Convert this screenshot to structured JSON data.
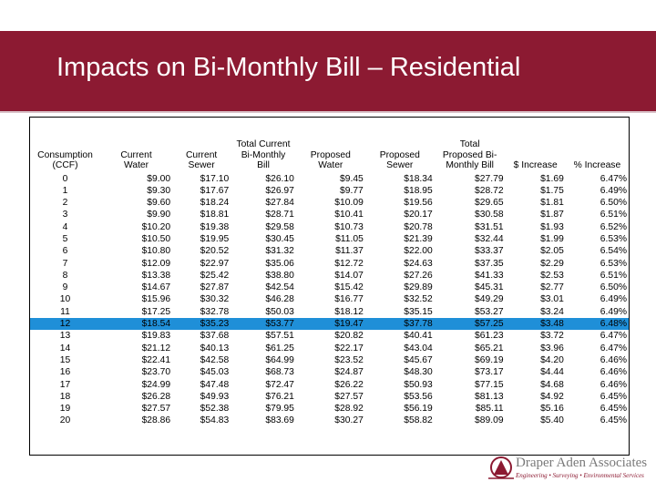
{
  "slide": {
    "title": "Impacts on Bi-Monthly Bill – Residential"
  },
  "table": {
    "headers": [
      [
        "Consumption",
        "(CCF)"
      ],
      [
        "Current",
        "Water"
      ],
      [
        "Current",
        "Sewer"
      ],
      [
        "Total Current",
        "Bi-Monthly",
        "Bill"
      ],
      [
        "Proposed",
        "Water"
      ],
      [
        "Proposed",
        "Sewer"
      ],
      [
        "Total",
        "Proposed Bi-",
        "Monthly Bill"
      ],
      [
        "$ Increase"
      ],
      [
        "% Increase"
      ]
    ],
    "highlighted_row": 12,
    "rows": [
      [
        "0",
        "$9.00",
        "$17.10",
        "$26.10",
        "$9.45",
        "$18.34",
        "$27.79",
        "$1.69",
        "6.47%"
      ],
      [
        "1",
        "$9.30",
        "$17.67",
        "$26.97",
        "$9.77",
        "$18.95",
        "$28.72",
        "$1.75",
        "6.49%"
      ],
      [
        "2",
        "$9.60",
        "$18.24",
        "$27.84",
        "$10.09",
        "$19.56",
        "$29.65",
        "$1.81",
        "6.50%"
      ],
      [
        "3",
        "$9.90",
        "$18.81",
        "$28.71",
        "$10.41",
        "$20.17",
        "$30.58",
        "$1.87",
        "6.51%"
      ],
      [
        "4",
        "$10.20",
        "$19.38",
        "$29.58",
        "$10.73",
        "$20.78",
        "$31.51",
        "$1.93",
        "6.52%"
      ],
      [
        "5",
        "$10.50",
        "$19.95",
        "$30.45",
        "$11.05",
        "$21.39",
        "$32.44",
        "$1.99",
        "6.53%"
      ],
      [
        "6",
        "$10.80",
        "$20.52",
        "$31.32",
        "$11.37",
        "$22.00",
        "$33.37",
        "$2.05",
        "6.54%"
      ],
      [
        "7",
        "$12.09",
        "$22.97",
        "$35.06",
        "$12.72",
        "$24.63",
        "$37.35",
        "$2.29",
        "6.53%"
      ],
      [
        "8",
        "$13.38",
        "$25.42",
        "$38.80",
        "$14.07",
        "$27.26",
        "$41.33",
        "$2.53",
        "6.51%"
      ],
      [
        "9",
        "$14.67",
        "$27.87",
        "$42.54",
        "$15.42",
        "$29.89",
        "$45.31",
        "$2.77",
        "6.50%"
      ],
      [
        "10",
        "$15.96",
        "$30.32",
        "$46.28",
        "$16.77",
        "$32.52",
        "$49.29",
        "$3.01",
        "6.49%"
      ],
      [
        "11",
        "$17.25",
        "$32.78",
        "$50.03",
        "$18.12",
        "$35.15",
        "$53.27",
        "$3.24",
        "6.49%"
      ],
      [
        "12",
        "$18.54",
        "$35.23",
        "$53.77",
        "$19.47",
        "$37.78",
        "$57.25",
        "$3.48",
        "6.48%"
      ],
      [
        "13",
        "$19.83",
        "$37.68",
        "$57.51",
        "$20.82",
        "$40.41",
        "$61.23",
        "$3.72",
        "6.47%"
      ],
      [
        "14",
        "$21.12",
        "$40.13",
        "$61.25",
        "$22.17",
        "$43.04",
        "$65.21",
        "$3.96",
        "6.47%"
      ],
      [
        "15",
        "$22.41",
        "$42.58",
        "$64.99",
        "$23.52",
        "$45.67",
        "$69.19",
        "$4.20",
        "6.46%"
      ],
      [
        "16",
        "$23.70",
        "$45.03",
        "$68.73",
        "$24.87",
        "$48.30",
        "$73.17",
        "$4.44",
        "6.46%"
      ],
      [
        "17",
        "$24.99",
        "$47.48",
        "$72.47",
        "$26.22",
        "$50.93",
        "$77.15",
        "$4.68",
        "6.46%"
      ],
      [
        "18",
        "$26.28",
        "$49.93",
        "$76.21",
        "$27.57",
        "$53.56",
        "$81.13",
        "$4.92",
        "6.45%"
      ],
      [
        "19",
        "$27.57",
        "$52.38",
        "$79.95",
        "$28.92",
        "$56.19",
        "$85.11",
        "$5.16",
        "6.45%"
      ],
      [
        "20",
        "$28.86",
        "$54.83",
        "$83.69",
        "$30.27",
        "$58.82",
        "$89.09",
        "$5.40",
        "6.45%"
      ]
    ]
  },
  "logo": {
    "icon": "draper-aden-logo-mark",
    "name": "Draper Aden Associates",
    "tagline": "Engineering • Surveying • Environmental Services",
    "colors": {
      "mark": "#8c1a32",
      "text": "#7a7a7a"
    }
  },
  "colors": {
    "banner": "#8c1a32",
    "highlight_row": "#1f8fd8"
  }
}
